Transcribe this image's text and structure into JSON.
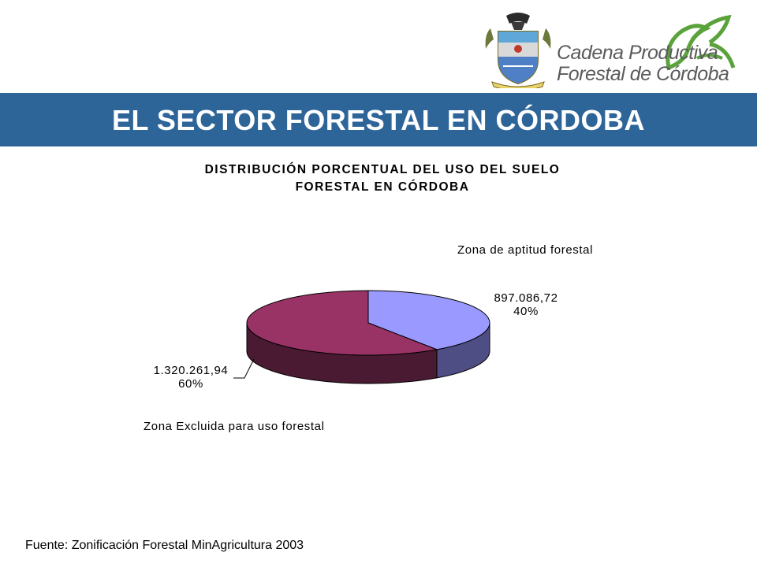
{
  "header": {
    "brand_line1": "Cadena Productiva",
    "brand_line2": "Forestal de Córdoba",
    "title": "EL SECTOR FORESTAL EN CÓRDOBA",
    "bar_color": "#2e6599"
  },
  "chart_data": {
    "type": "pie",
    "title_line1": "DISTRIBUCIÓN PORCENTUAL DEL USO DEL SUELO",
    "title_line2": "FORESTAL EN CÓRDOBA",
    "three_d": true,
    "slices": [
      {
        "name": "Zona de aptitud forestal",
        "value_label": "897.086,72",
        "value": 897086.72,
        "percent_label": "40%",
        "percent": 40,
        "color": "#9999ff",
        "side_color": "#4e4e85"
      },
      {
        "name": "Zona Excluida para uso forestal",
        "value_label": "1.320.261,94",
        "value": 1320261.94,
        "percent_label": "60%",
        "percent": 60,
        "color": "#993366",
        "side_color": "#4a1a33"
      }
    ]
  },
  "footer": {
    "source": "Fuente: Zonificación Forestal MinAgricultura 2003"
  }
}
